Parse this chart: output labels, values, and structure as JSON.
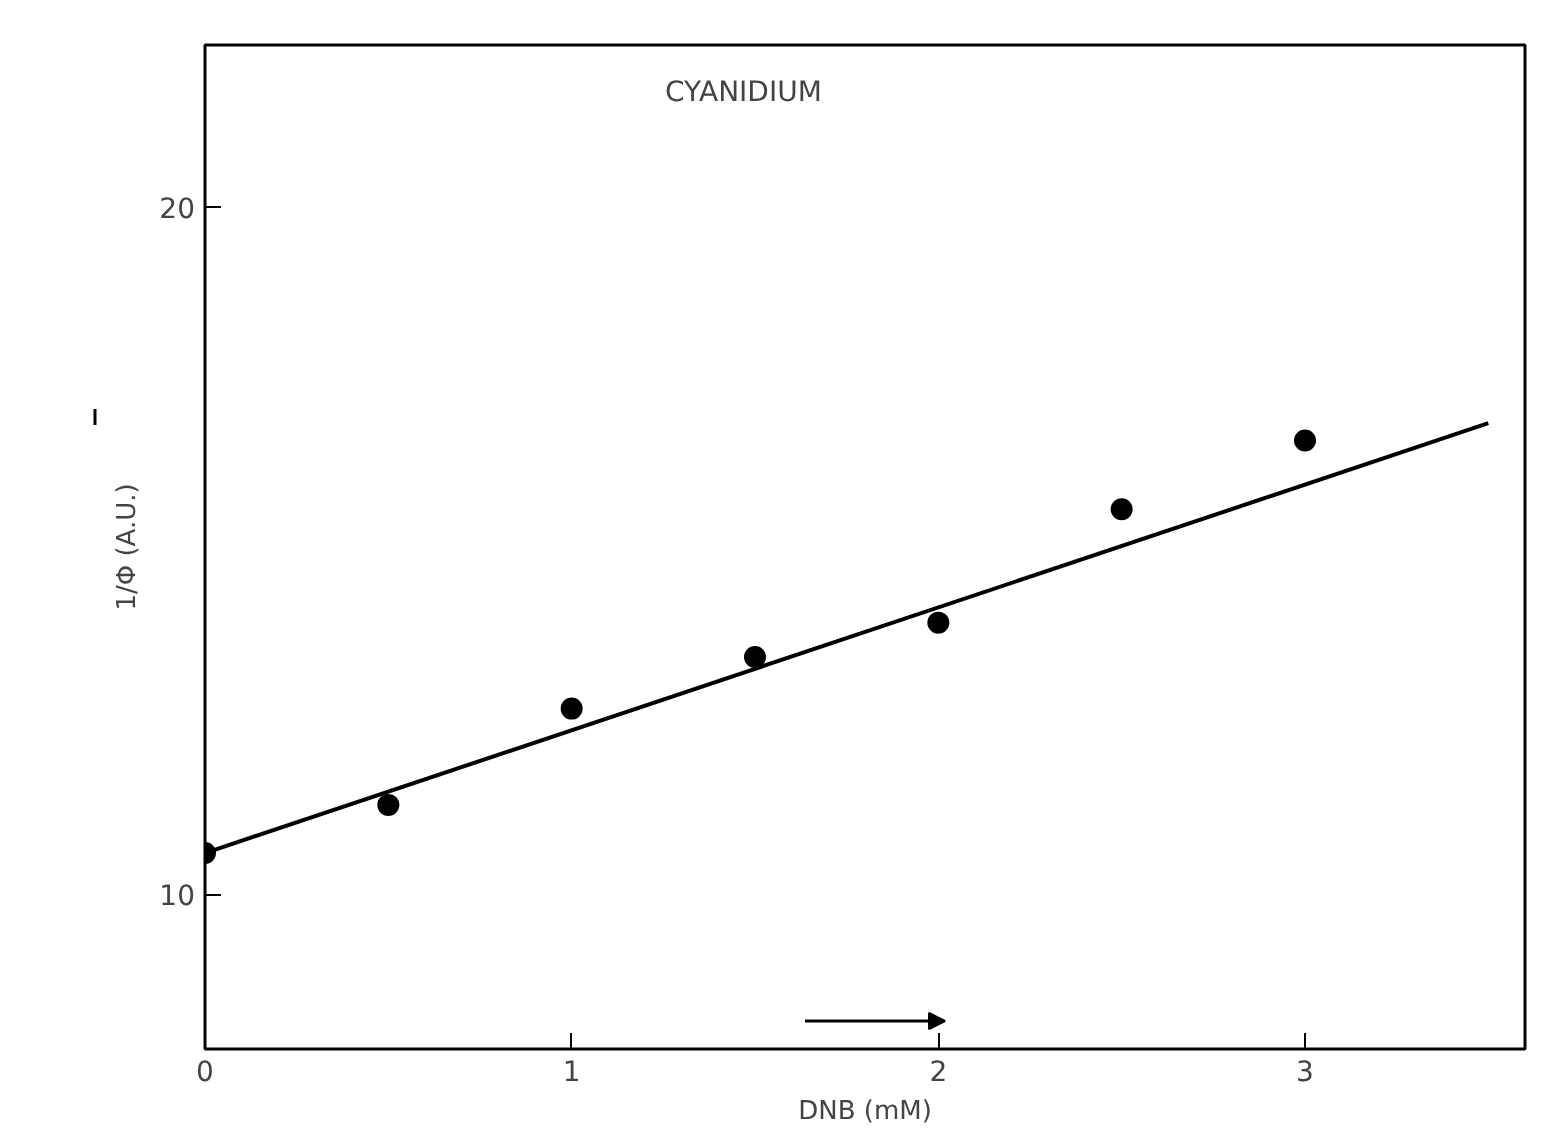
{
  "chart_data": {
    "type": "scatter",
    "annotations": [
      "CYANIDIUM"
    ],
    "xlabel": "DNB (mM)",
    "ylabel": "1/Φ (A.U.)",
    "series": [
      {
        "color": "#000000",
        "marker": "circle",
        "x": [
          0,
          0.5,
          1,
          1.5,
          2,
          2.5,
          3
        ],
        "values": [
          10.6,
          11.3,
          12.7,
          13.45,
          13.95,
          15.6,
          16.6
        ]
      },
      {
        "type": "line",
        "color": "#000000",
        "x": [
          0,
          3.5
        ],
        "values": [
          10.6,
          16.85
        ]
      }
    ],
    "xlim": [
      0,
      3.6
    ],
    "ylim": [
      7.75,
      22.35
    ],
    "xticks": [
      0,
      1,
      2,
      3
    ],
    "yticks": [
      10,
      20
    ],
    "grid": false
  }
}
